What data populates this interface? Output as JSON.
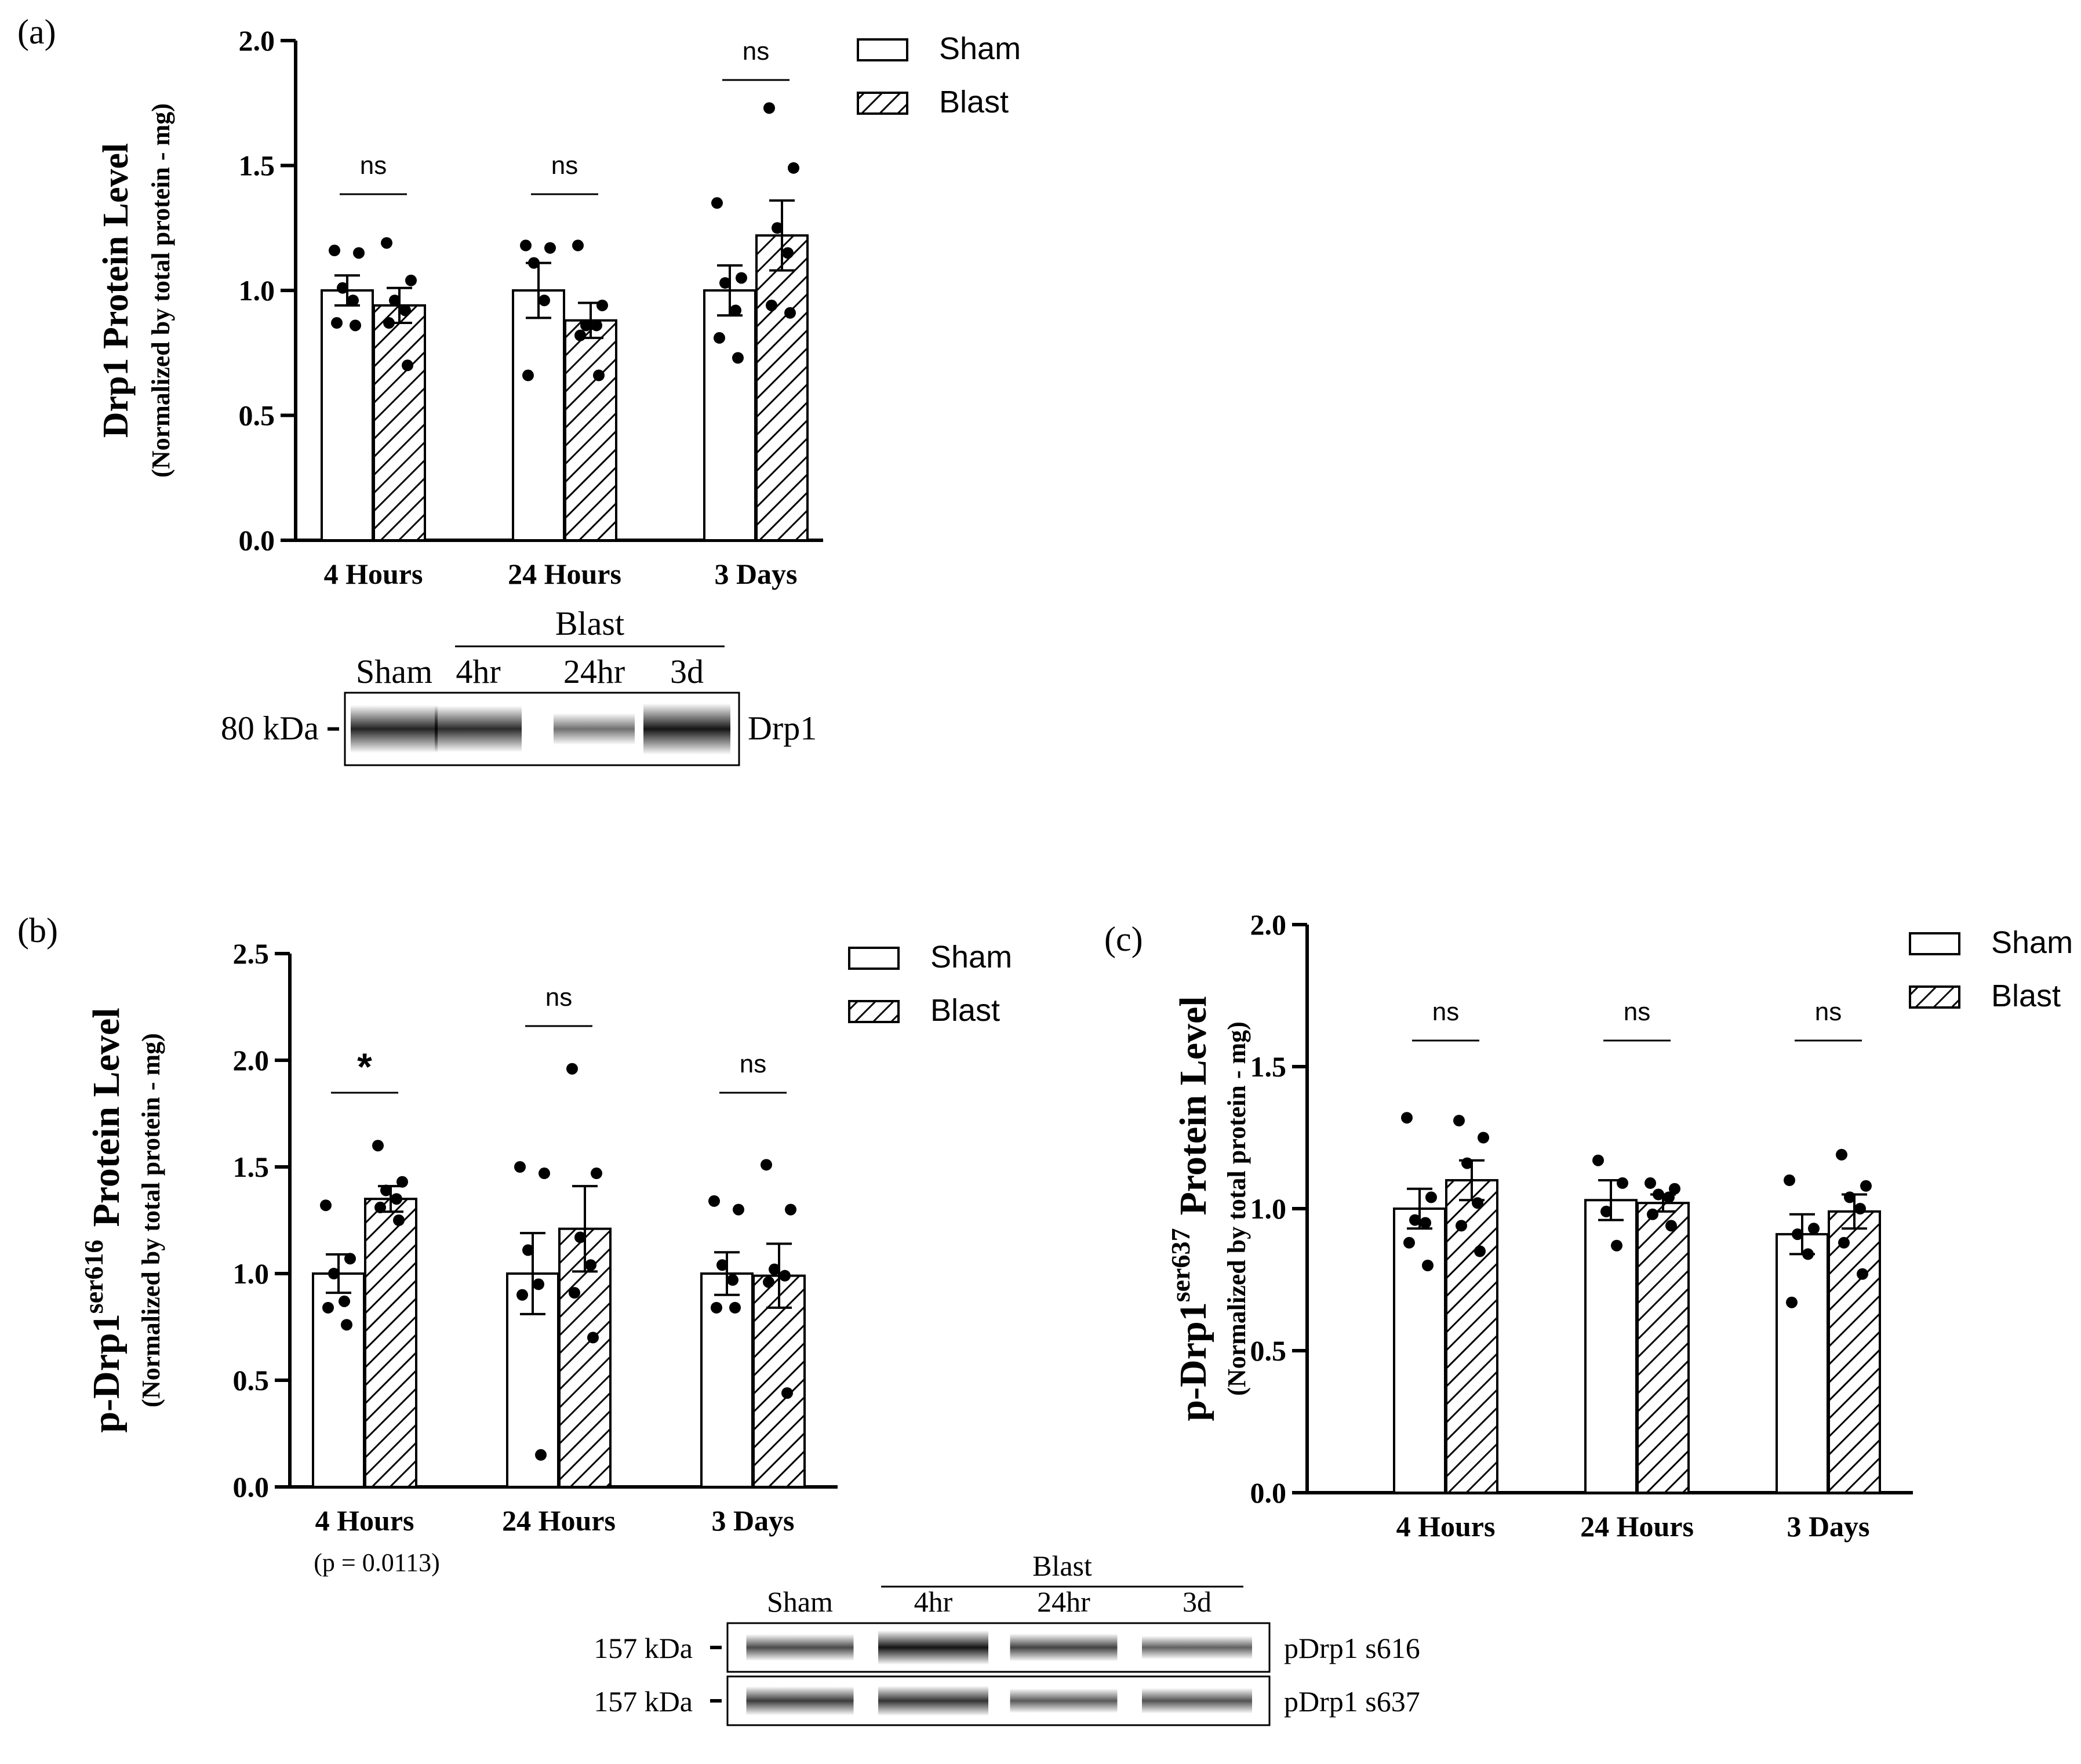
{
  "colors": {
    "bar_fill": "#ffffff",
    "stroke": "#000000",
    "band_dark": "#555555"
  },
  "panels": {
    "a": {
      "label": "(a)"
    },
    "b": {
      "label": "(b)",
      "pvalue_note": "(p = 0.0113)"
    },
    "c": {
      "label": "(c)"
    }
  },
  "chart_data": [
    {
      "id": "a",
      "type": "bar",
      "title": "",
      "ylabel": "Drp1 Protein Level",
      "ylabel_sub": "(Normalized by total protein - mg)",
      "categories": [
        "4 Hours",
        "24 Hours",
        "3 Days"
      ],
      "yticks": [
        "0.0",
        "0.5",
        "1.0",
        "1.5",
        "2.0"
      ],
      "ylim": [
        0,
        2.0
      ],
      "legend": [
        "Sham",
        "Blast"
      ],
      "series": [
        {
          "name": "Sham",
          "values": [
            1.0,
            1.0,
            1.0
          ],
          "sem": [
            0.06,
            0.11,
            0.1
          ],
          "points": [
            [
              1.16,
              1.15,
              1.01,
              0.96,
              0.87,
              0.86
            ],
            [
              1.18,
              1.17,
              1.11,
              0.96,
              0.66
            ],
            [
              1.35,
              1.05,
              1.03,
              0.92,
              0.81,
              0.73
            ]
          ]
        },
        {
          "name": "Blast",
          "values": [
            0.94,
            0.88,
            1.22
          ],
          "sem": [
            0.07,
            0.07,
            0.14
          ],
          "points": [
            [
              1.19,
              1.04,
              0.96,
              0.92,
              0.87,
              0.7
            ],
            [
              1.18,
              0.94,
              0.86,
              0.86,
              0.82,
              0.66
            ],
            [
              1.73,
              1.49,
              1.25,
              1.15,
              0.94,
              0.91
            ]
          ]
        }
      ],
      "significance": [
        "ns",
        "ns",
        "ns"
      ],
      "blot": {
        "group_label": "Blast",
        "lanes": [
          "Sham",
          "4hr",
          "24hr",
          "3d"
        ],
        "rows": [
          {
            "mw": "80 kDa",
            "name": "Drp1",
            "intensity": [
              0.85,
              0.8,
              0.35,
              0.95
            ]
          }
        ]
      }
    },
    {
      "id": "b",
      "type": "bar",
      "title": "",
      "ylabel_main": "p-Drp1",
      "ylabel_sup": "ser616",
      "ylabel_tail": "Protein Level",
      "ylabel_sub": "(Normalized by total protein - mg)",
      "categories": [
        "4 Hours",
        "24 Hours",
        "3 Days"
      ],
      "yticks": [
        "0.0",
        "0.5",
        "1.0",
        "1.5",
        "2.0",
        "2.5"
      ],
      "ylim": [
        0,
        2.5
      ],
      "legend": [
        "Sham",
        "Blast"
      ],
      "series": [
        {
          "name": "Sham",
          "values": [
            1.0,
            1.0,
            1.0
          ],
          "sem": [
            0.09,
            0.19,
            0.1
          ],
          "points": [
            [
              1.32,
              1.07,
              1.0,
              0.87,
              0.84,
              0.76
            ],
            [
              1.5,
              1.47,
              1.11,
              0.95,
              0.9,
              0.15
            ],
            [
              1.34,
              1.3,
              1.04,
              0.97,
              0.84,
              0.84
            ]
          ]
        },
        {
          "name": "Blast",
          "values": [
            1.35,
            1.21,
            0.99
          ],
          "sem": [
            0.06,
            0.2,
            0.15
          ],
          "points": [
            [
              1.6,
              1.43,
              1.39,
              1.35,
              1.31,
              1.25
            ],
            [
              1.96,
              1.47,
              1.17,
              1.04,
              0.91,
              0.7
            ],
            [
              1.51,
              1.3,
              1.02,
              0.99,
              0.96,
              0.44
            ]
          ]
        }
      ],
      "significance": [
        "*",
        "ns",
        "ns"
      ],
      "blot": {
        "group_label": "Blast",
        "lanes": [
          "Sham",
          "4hr",
          "24hr",
          "3d"
        ],
        "rows": [
          {
            "mw": "157 kDa",
            "name": "pDrp1 s616",
            "intensity": [
              0.6,
              0.95,
              0.65,
              0.45
            ]
          },
          {
            "mw": "157 kDa",
            "name": "pDrp1 s637",
            "intensity": [
              0.7,
              0.75,
              0.5,
              0.55
            ]
          }
        ]
      }
    },
    {
      "id": "c",
      "type": "bar",
      "title": "",
      "ylabel_main": "p-Drp1",
      "ylabel_sup": "ser637",
      "ylabel_tail": "Protein Level",
      "ylabel_sub": "(Normalized by total protein - mg)",
      "categories": [
        "4 Hours",
        "24 Hours",
        "3 Days"
      ],
      "yticks": [
        "0.0",
        "0.5",
        "1.0",
        "1.5",
        "2.0"
      ],
      "ylim": [
        0,
        2.0
      ],
      "legend": [
        "Sham",
        "Blast"
      ],
      "series": [
        {
          "name": "Sham",
          "values": [
            1.0,
            1.03,
            0.91
          ],
          "sem": [
            0.07,
            0.07,
            0.07
          ],
          "points": [
            [
              1.32,
              1.04,
              0.96,
              0.95,
              0.88,
              0.8
            ],
            [
              1.17,
              1.09,
              0.99,
              0.87
            ],
            [
              1.1,
              0.93,
              0.91,
              0.84,
              0.67
            ]
          ]
        },
        {
          "name": "Blast",
          "values": [
            1.1,
            1.02,
            0.99
          ],
          "sem": [
            0.07,
            0.03,
            0.06
          ],
          "points": [
            [
              1.31,
              1.25,
              1.16,
              1.02,
              0.94,
              0.85
            ],
            [
              1.09,
              1.07,
              1.05,
              1.04,
              0.98,
              0.94
            ],
            [
              1.19,
              1.08,
              1.04,
              1.0,
              0.88,
              0.77
            ]
          ]
        }
      ],
      "significance": [
        "ns",
        "ns",
        "ns"
      ]
    }
  ]
}
